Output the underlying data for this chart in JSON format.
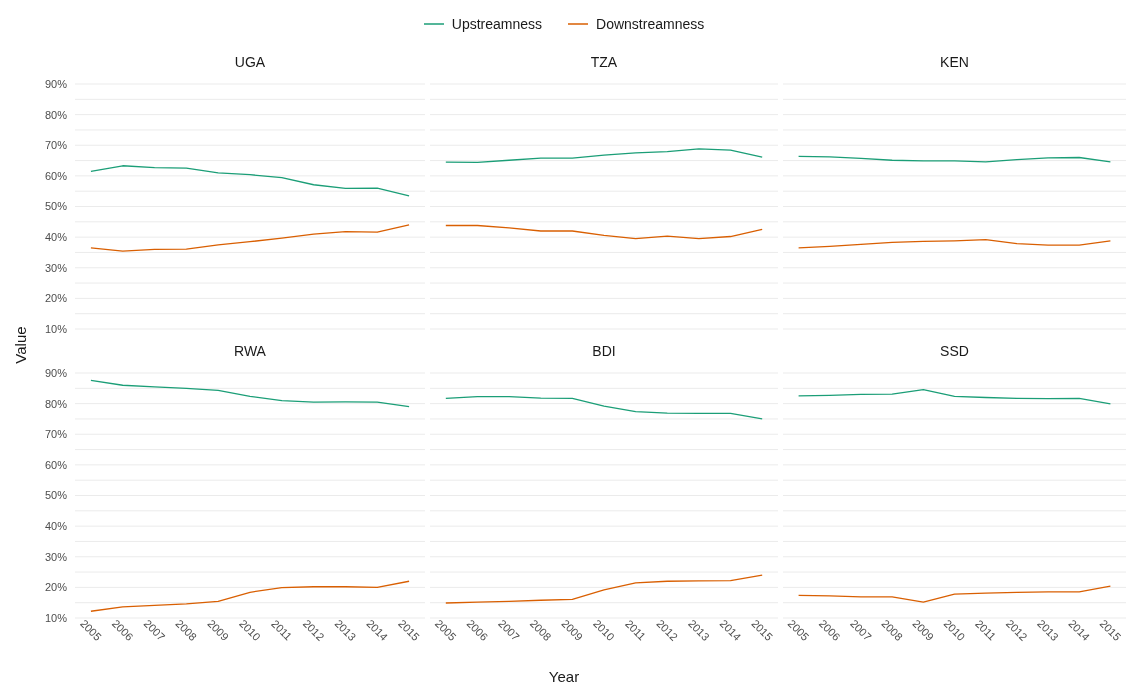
{
  "chart_data": [
    {
      "type": "line",
      "title": "UGA",
      "ylabel": "Value",
      "legend": "top",
      "grid": "y",
      "tick_labels": "y",
      "categories": [
        "2005",
        "2006",
        "2007",
        "2008",
        "2009",
        "2010",
        "2011",
        "2012",
        "2013",
        "2014",
        "2015"
      ],
      "ylim": [
        10,
        90
      ],
      "yticks": [
        {
          "value": 10,
          "label": "10%"
        },
        {
          "value": 15,
          "label": null
        },
        {
          "value": 20,
          "label": "20%"
        },
        {
          "value": 25,
          "label": null
        },
        {
          "value": 30,
          "label": "30%"
        },
        {
          "value": 35,
          "label": null
        },
        {
          "value": 40,
          "label": "40%"
        },
        {
          "value": 45,
          "label": null
        },
        {
          "value": 50,
          "label": "50%"
        },
        {
          "value": 55,
          "label": null
        },
        {
          "value": 60,
          "label": "60%"
        },
        {
          "value": 65,
          "label": null
        },
        {
          "value": 70,
          "label": "70%"
        },
        {
          "value": 75,
          "label": null
        },
        {
          "value": 80,
          "label": "80%"
        },
        {
          "value": 85,
          "label": null
        },
        {
          "value": 90,
          "label": "90%"
        }
      ],
      "series": [
        {
          "name": "Upstreamness",
          "color": "#1b9e77",
          "values": [
            61.5,
            63.3,
            62.7,
            62.5,
            61.0,
            60.4,
            59.4,
            57.1,
            55.9,
            56.0,
            53.5
          ]
        },
        {
          "name": "Downstreamness",
          "color": "#d95f02",
          "values": [
            36.5,
            35.4,
            36.0,
            36.1,
            37.5,
            38.5,
            39.7,
            41.0,
            41.8,
            41.6,
            44.0
          ]
        }
      ]
    },
    {
      "type": "line",
      "title": "TZA",
      "grid": "y",
      "tick_labels": false,
      "categories": [
        "2005",
        "2006",
        "2007",
        "2008",
        "2009",
        "2010",
        "2011",
        "2012",
        "2013",
        "2014",
        "2015"
      ],
      "ylim": [
        10,
        90
      ],
      "yticks": [
        10,
        15,
        20,
        25,
        30,
        35,
        40,
        45,
        50,
        55,
        60,
        65,
        70,
        75,
        80,
        85,
        90
      ],
      "series": [
        {
          "color": "#1b9e77",
          "values": [
            64.5,
            64.4,
            65.1,
            65.8,
            65.8,
            66.8,
            67.5,
            67.9,
            68.8,
            68.4,
            66.1
          ]
        },
        {
          "color": "#d95f02",
          "values": [
            43.8,
            43.8,
            43.0,
            42.0,
            42.0,
            40.6,
            39.5,
            40.3,
            39.5,
            40.2,
            42.5
          ]
        }
      ]
    },
    {
      "type": "line",
      "title": "KEN",
      "grid": "y",
      "tick_labels": false,
      "categories": [
        "2005",
        "2006",
        "2007",
        "2008",
        "2009",
        "2010",
        "2011",
        "2012",
        "2013",
        "2014",
        "2015"
      ],
      "ylim": [
        10,
        90
      ],
      "yticks": [
        10,
        15,
        20,
        25,
        30,
        35,
        40,
        45,
        50,
        55,
        60,
        65,
        70,
        75,
        80,
        85,
        90
      ],
      "series": [
        {
          "color": "#1b9e77",
          "values": [
            66.4,
            66.2,
            65.7,
            65.1,
            64.9,
            64.9,
            64.6,
            65.3,
            65.9,
            66.0,
            64.6
          ]
        },
        {
          "color": "#d95f02",
          "values": [
            36.5,
            37.0,
            37.6,
            38.3,
            38.6,
            38.8,
            39.2,
            37.9,
            37.4,
            37.4,
            38.8
          ]
        }
      ]
    },
    {
      "type": "line",
      "title": "RWA",
      "grid": "y",
      "categories": [
        "2005",
        "2006",
        "2007",
        "2008",
        "2009",
        "2010",
        "2011",
        "2012",
        "2013",
        "2014",
        "2015"
      ],
      "ylim": [
        10,
        90
      ],
      "yticks": [
        {
          "value": 10,
          "label": "10%"
        },
        {
          "value": 15,
          "label": null
        },
        {
          "value": 20,
          "label": "20%"
        },
        {
          "value": 25,
          "label": null
        },
        {
          "value": 30,
          "label": "30%"
        },
        {
          "value": 35,
          "label": null
        },
        {
          "value": 40,
          "label": "40%"
        },
        {
          "value": 45,
          "label": null
        },
        {
          "value": 50,
          "label": "50%"
        },
        {
          "value": 55,
          "label": null
        },
        {
          "value": 60,
          "label": "60%"
        },
        {
          "value": 65,
          "label": null
        },
        {
          "value": 70,
          "label": "70%"
        },
        {
          "value": 75,
          "label": null
        },
        {
          "value": 80,
          "label": "80%"
        },
        {
          "value": 85,
          "label": null
        },
        {
          "value": 90,
          "label": "90%"
        }
      ],
      "series": [
        {
          "color": "#1b9e77",
          "values": [
            87.6,
            86.0,
            85.5,
            85.0,
            84.3,
            82.4,
            81.0,
            80.5,
            80.6,
            80.5,
            79.0
          ]
        },
        {
          "color": "#d95f02",
          "values": [
            12.2,
            13.6,
            14.1,
            14.6,
            15.4,
            18.4,
            19.9,
            20.2,
            20.2,
            20.0,
            22.0
          ]
        }
      ]
    },
    {
      "type": "line",
      "title": "BDI",
      "xlabel": "Year",
      "grid": "y",
      "tick_labels": "x",
      "categories": [
        "2005",
        "2006",
        "2007",
        "2008",
        "2009",
        "2010",
        "2011",
        "2012",
        "2013",
        "2014",
        "2015"
      ],
      "ylim": [
        10,
        90
      ],
      "yticks": [
        10,
        15,
        20,
        25,
        30,
        35,
        40,
        45,
        50,
        55,
        60,
        65,
        70,
        75,
        80,
        85,
        90
      ],
      "series": [
        {
          "color": "#1b9e77",
          "values": [
            81.7,
            82.3,
            82.3,
            81.8,
            81.7,
            79.2,
            77.4,
            76.9,
            76.8,
            76.8,
            75.0
          ]
        },
        {
          "color": "#d95f02",
          "values": [
            14.9,
            15.2,
            15.4,
            15.8,
            16.1,
            19.2,
            21.5,
            22.0,
            22.1,
            22.2,
            24.0
          ]
        }
      ]
    },
    {
      "type": "line",
      "title": "SSD",
      "grid": "y",
      "tick_labels": "x",
      "categories": [
        "2005",
        "2006",
        "2007",
        "2008",
        "2009",
        "2010",
        "2011",
        "2012",
        "2013",
        "2014",
        "2015"
      ],
      "ylim": [
        10,
        90
      ],
      "yticks": [
        10,
        15,
        20,
        25,
        30,
        35,
        40,
        45,
        50,
        55,
        60,
        65,
        70,
        75,
        80,
        85,
        90
      ],
      "series": [
        {
          "color": "#1b9e77",
          "values": [
            82.5,
            82.7,
            83.0,
            83.1,
            84.6,
            82.4,
            82.0,
            81.7,
            81.6,
            81.7,
            79.9
          ]
        },
        {
          "color": "#d95f02",
          "values": [
            17.4,
            17.2,
            16.9,
            16.9,
            15.2,
            17.8,
            18.1,
            18.4,
            18.5,
            18.5,
            20.4
          ]
        }
      ]
    }
  ]
}
